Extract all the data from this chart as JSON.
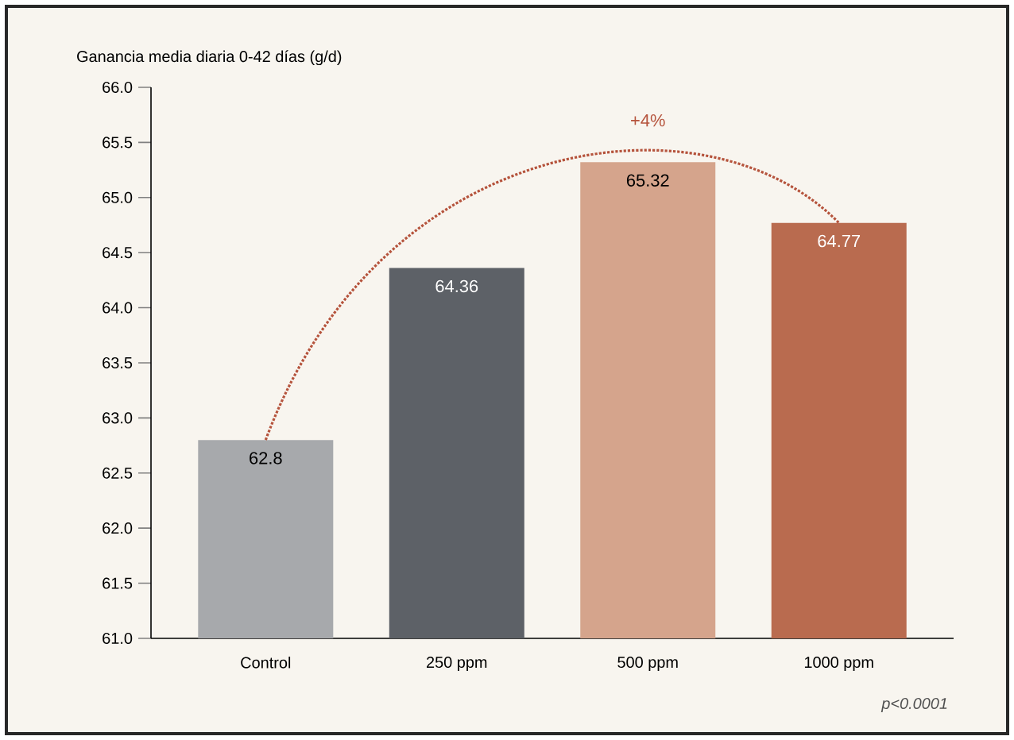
{
  "chart_data": {
    "type": "bar",
    "ylabel": "Ganancia media diaria 0-42 días (g/d)",
    "categories": [
      "Control",
      "250 ppm",
      "500 ppm",
      "1000 ppm"
    ],
    "values": [
      62.8,
      64.36,
      65.32,
      64.77
    ],
    "colors": [
      "#a7a9ac",
      "#5d6167",
      "#d5a48c",
      "#b96b4f"
    ],
    "data_labels": true,
    "ylim": [
      61,
      66
    ],
    "yticks": [
      {
        "value": 61,
        "label": "61.0"
      },
      {
        "value": 61.5,
        "label": "61.5"
      },
      {
        "value": 62,
        "label": "62.0"
      },
      {
        "value": 62.5,
        "label": "62.5"
      },
      {
        "value": 63,
        "label": "63.0"
      },
      {
        "value": 63.5,
        "label": "63.5"
      },
      {
        "value": 64,
        "label": "64.0"
      },
      {
        "value": 64.5,
        "label": "64.5"
      },
      {
        "value": 65,
        "label": "65.0"
      },
      {
        "value": 65.5,
        "label": "65.5"
      },
      {
        "value": 66,
        "label": "66.0"
      }
    ],
    "annotations": [
      "+4%",
      "p<0.0001"
    ],
    "grid": false
  }
}
